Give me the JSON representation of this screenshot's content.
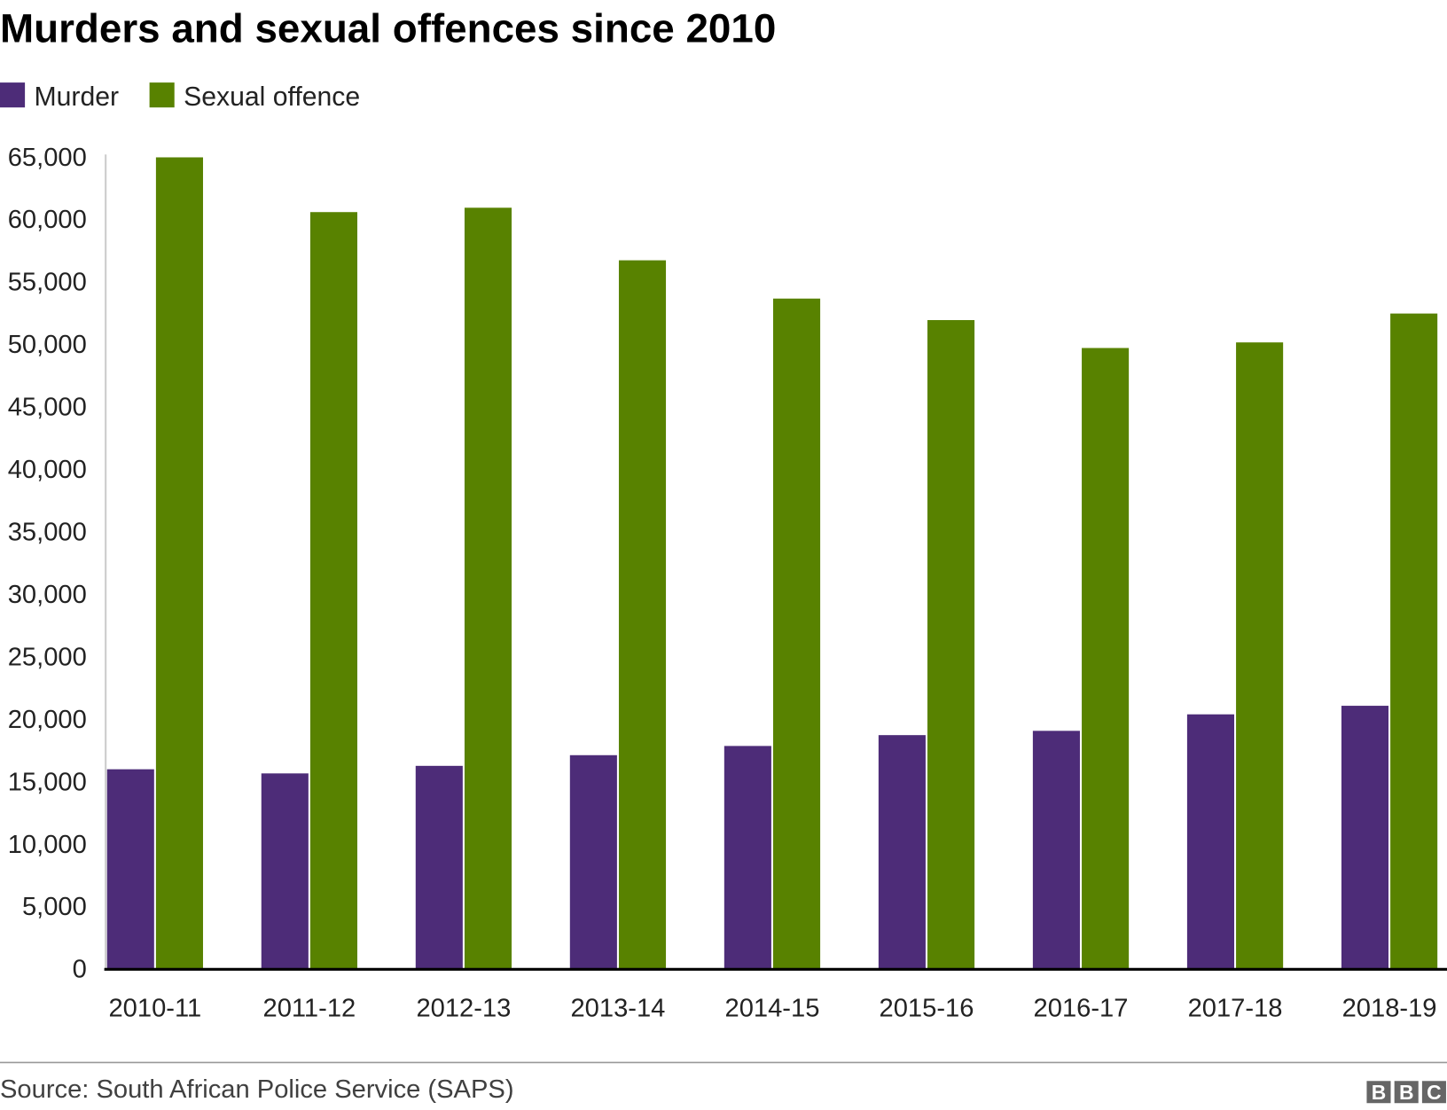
{
  "chart_data": {
    "type": "bar",
    "title": "Murders and sexual offences since 2010",
    "xlabel": "",
    "ylabel": "",
    "categories": [
      "2010-11",
      "2011-12",
      "2012-13",
      "2013-14",
      "2014-15",
      "2015-16",
      "2016-17",
      "2017-18",
      "2018-19"
    ],
    "series": [
      {
        "name": "Murder",
        "color": "#4d2c78",
        "values": [
          15940,
          15609,
          16213,
          17068,
          17805,
          18673,
          19016,
          20336,
          21022
        ]
      },
      {
        "name": "Sexual offence",
        "color": "#588200",
        "values": [
          64921,
          60539,
          60888,
          56680,
          53617,
          51895,
          49660,
          50108,
          52420
        ]
      }
    ],
    "ylim": [
      0,
      65000
    ],
    "yticks": [
      "0",
      "5,000",
      "10,000",
      "15,000",
      "20,000",
      "25,000",
      "30,000",
      "35,000",
      "40,000",
      "45,000",
      "50,000",
      "55,000",
      "60,000",
      "65,000"
    ],
    "ytick_values": [
      0,
      5000,
      10000,
      15000,
      20000,
      25000,
      30000,
      35000,
      40000,
      45000,
      50000,
      55000,
      60000,
      65000
    ],
    "grid": false,
    "legend_position": "top-left"
  },
  "footer": {
    "source": "Source: South African Police Service (SAPS)",
    "logo": "BBC"
  }
}
